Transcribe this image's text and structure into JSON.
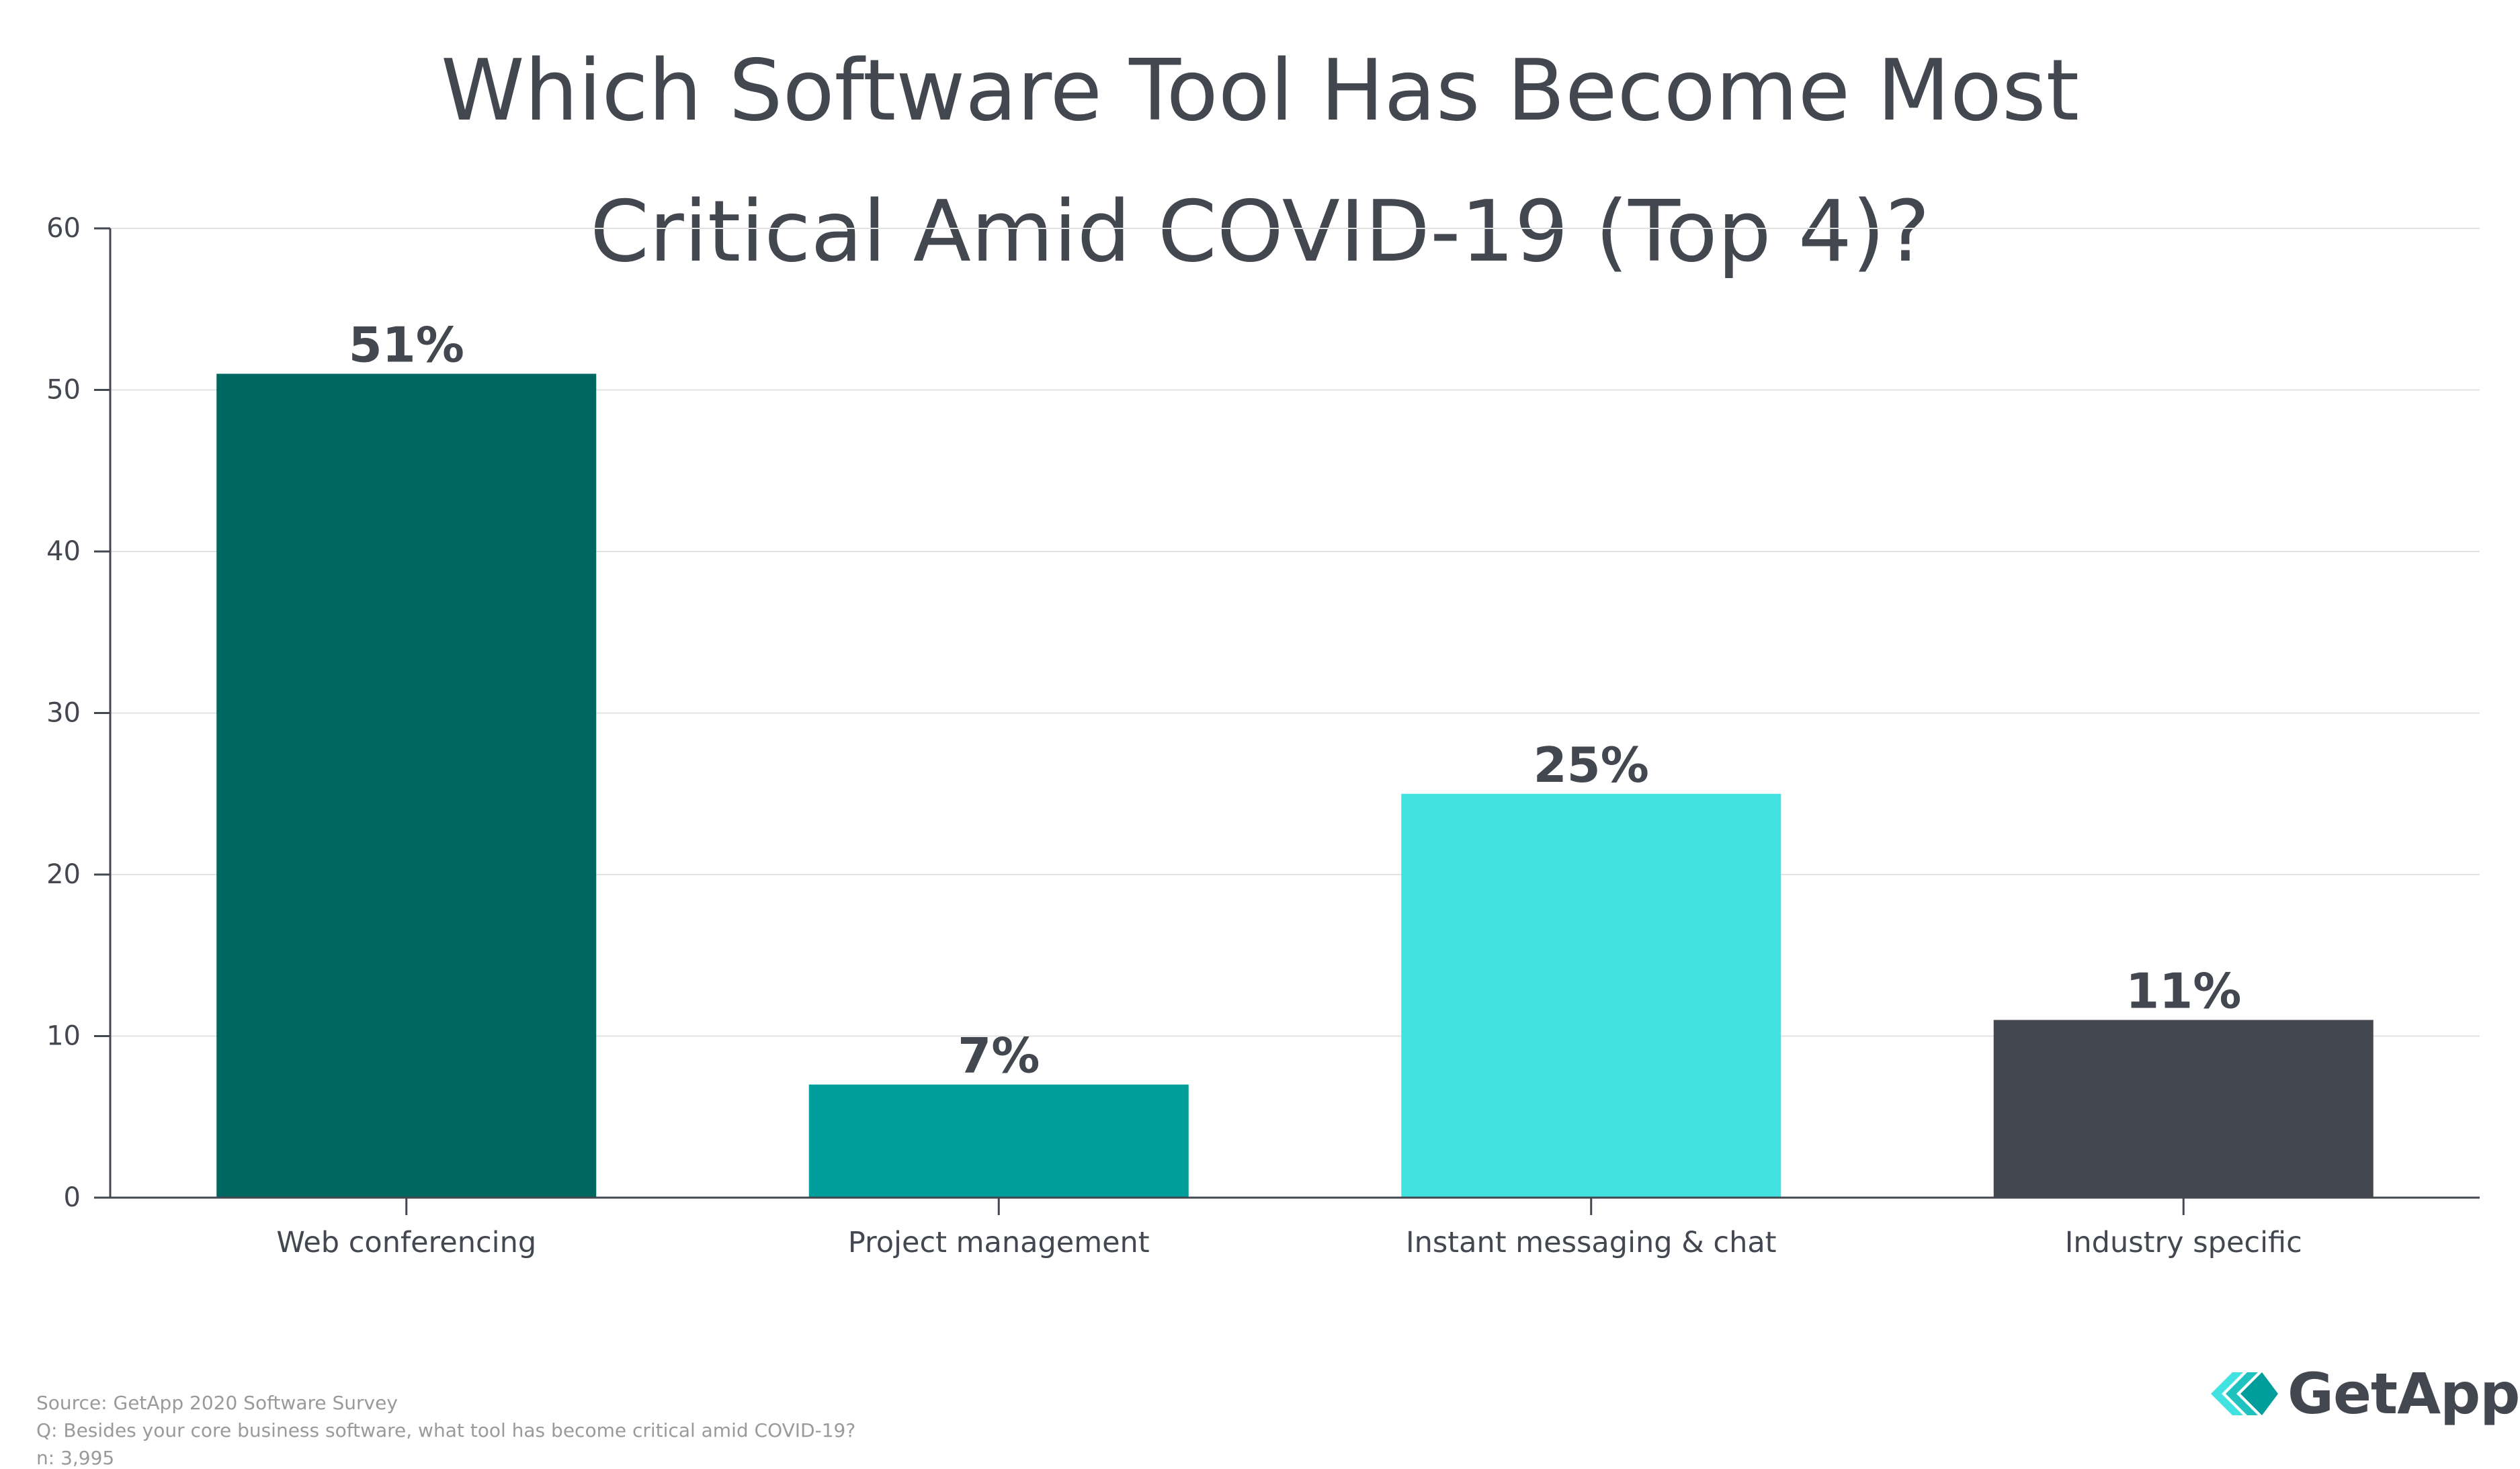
{
  "chart_data": {
    "type": "bar",
    "title_lines": [
      "Which Software Tool Has Become Most",
      "Critical Amid COVID-19 (Top 4)?"
    ],
    "categories": [
      "Web conferencing",
      "Project management",
      "Instant messaging & chat",
      "Industry specific"
    ],
    "values": [
      51,
      7,
      25,
      11
    ],
    "data_labels": [
      "51%",
      "7%",
      "25%",
      "11%"
    ],
    "colors": [
      "#006760",
      "#009e9a",
      "#41e2e0",
      "#434750"
    ],
    "ylim": [
      0,
      60
    ],
    "yticks": [
      0,
      10,
      20,
      30,
      40,
      50,
      60
    ],
    "xlabel": "",
    "ylabel": "",
    "grid": true
  },
  "footer": {
    "source": "Source: GetApp 2020 Software Survey",
    "question": "Q: Besides your core business software, what tool has become critical amid COVID-19?",
    "sample": "n: 3,995"
  },
  "brand": {
    "name": "GetApp",
    "logo_icon": "getapp-chevrons-icon"
  }
}
